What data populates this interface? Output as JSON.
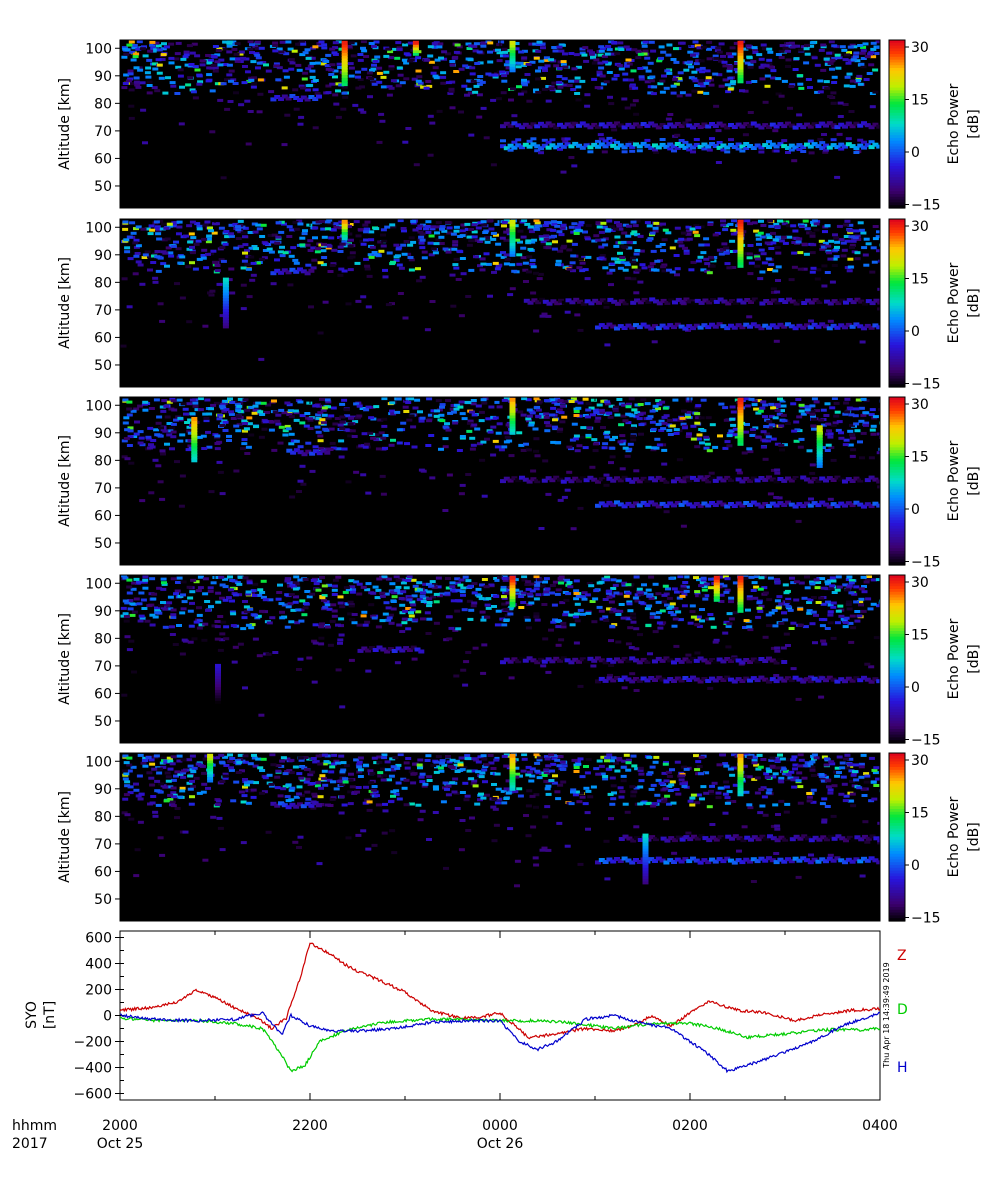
{
  "panel": {
    "ylabel": "Altitude [km]",
    "yticks": [
      50,
      60,
      70,
      80,
      90,
      100
    ],
    "ylim": [
      42,
      103
    ],
    "colorbar": {
      "label_line1": "Echo Power",
      "label_line2": "[dB]",
      "ticks": [
        -15,
        0,
        15,
        30
      ],
      "range": [
        -16,
        32
      ]
    }
  },
  "chart_data": [
    {
      "type": "heatmap",
      "x_range": [
        "2017-10-25 20:00",
        "2017-10-26 04:00"
      ],
      "ylabel": "Altitude [km]",
      "ylim": [
        42,
        103
      ],
      "value_label": "Echo Power [dB]",
      "value_range": [
        -15,
        30
      ],
      "layers": [
        {
          "type": "layer",
          "x_start": "00:00",
          "x_end": "04:00",
          "altitude": 64.5,
          "value": 3
        },
        {
          "type": "layer",
          "x_start": "00:00",
          "x_end": "04:00",
          "altitude": 72,
          "value": -8
        },
        {
          "type": "layer",
          "x_start": "21:35",
          "x_end": "22:05",
          "altitude": 82,
          "value": -5
        }
      ],
      "spikes": [
        {
          "x": "22:20",
          "alt_top": 102,
          "alt_bottom": 87,
          "value": 30
        },
        {
          "x": "23:05",
          "alt_top": 102,
          "alt_bottom": 98,
          "value": 30
        },
        {
          "x": "00:06",
          "alt_top": 102,
          "alt_bottom": 92,
          "value": 20
        },
        {
          "x": "02:30",
          "alt_top": 102,
          "alt_bottom": 88,
          "value": 30
        }
      ]
    },
    {
      "type": "heatmap",
      "x_range": [
        "2017-10-25 20:00",
        "2017-10-26 04:00"
      ],
      "ylabel": "Altitude [km]",
      "ylim": [
        42,
        103
      ],
      "value_label": "Echo Power [dB]",
      "value_range": [
        -15,
        30
      ],
      "layers": [
        {
          "type": "layer",
          "x_start": "01:00",
          "x_end": "04:00",
          "altitude": 64,
          "value": -5
        },
        {
          "type": "layer",
          "x_start": "00:15",
          "x_end": "04:00",
          "altitude": 73,
          "value": -10
        },
        {
          "type": "layer",
          "x_start": "21:35",
          "x_end": "22:00",
          "altitude": 84,
          "value": -6
        }
      ],
      "spikes": [
        {
          "x": "22:20",
          "alt_top": 102,
          "alt_bottom": 96,
          "value": 25
        },
        {
          "x": "00:06",
          "alt_top": 102,
          "alt_bottom": 90,
          "value": 20
        },
        {
          "x": "02:30",
          "alt_top": 102,
          "alt_bottom": 86,
          "value": 30
        },
        {
          "x": "21:05",
          "alt_top": 81,
          "alt_bottom": 64,
          "value": 8
        }
      ]
    },
    {
      "type": "heatmap",
      "x_range": [
        "2017-10-25 20:00",
        "2017-10-26 04:00"
      ],
      "ylabel": "Altitude [km]",
      "ylim": [
        42,
        103
      ],
      "value_label": "Echo Power [dB]",
      "value_range": [
        -15,
        30
      ],
      "layers": [
        {
          "type": "layer",
          "x_start": "01:00",
          "x_end": "04:00",
          "altitude": 64,
          "value": -5
        },
        {
          "type": "layer",
          "x_start": "00:00",
          "x_end": "04:00",
          "altitude": 73,
          "value": -10
        },
        {
          "type": "layer",
          "x_start": "21:45",
          "x_end": "22:10",
          "altitude": 83,
          "value": -6
        }
      ],
      "spikes": [
        {
          "x": "20:45",
          "alt_top": 95,
          "alt_bottom": 80,
          "value": 25
        },
        {
          "x": "00:06",
          "alt_top": 102,
          "alt_bottom": 90,
          "value": 25
        },
        {
          "x": "02:30",
          "alt_top": 102,
          "alt_bottom": 86,
          "value": 30
        },
        {
          "x": "03:20",
          "alt_top": 92,
          "alt_bottom": 78,
          "value": 20
        }
      ]
    },
    {
      "type": "heatmap",
      "x_range": [
        "2017-10-25 20:00",
        "2017-10-26 04:00"
      ],
      "ylabel": "Altitude [km]",
      "ylim": [
        42,
        103
      ],
      "value_label": "Echo Power [dB]",
      "value_range": [
        -15,
        30
      ],
      "layers": [
        {
          "type": "layer",
          "x_start": "01:00",
          "x_end": "04:00",
          "altitude": 65,
          "value": -8
        },
        {
          "type": "layer",
          "x_start": "00:00",
          "x_end": "03:00",
          "altitude": 72,
          "value": -10
        },
        {
          "type": "layer",
          "x_start": "22:30",
          "x_end": "23:10",
          "altitude": 76,
          "value": -8
        }
      ],
      "spikes": [
        {
          "x": "00:06",
          "alt_top": 102,
          "alt_bottom": 92,
          "value": 30
        },
        {
          "x": "02:15",
          "alt_top": 102,
          "alt_bottom": 94,
          "value": 30
        },
        {
          "x": "02:30",
          "alt_top": 102,
          "alt_bottom": 90,
          "value": 30
        },
        {
          "x": "21:00",
          "alt_top": 70,
          "alt_bottom": 48,
          "value": -5
        }
      ]
    },
    {
      "type": "heatmap",
      "x_range": [
        "2017-10-25 20:00",
        "2017-10-26 04:00"
      ],
      "ylabel": "Altitude [km]",
      "ylim": [
        42,
        103
      ],
      "value_label": "Echo Power [dB]",
      "value_range": [
        -15,
        30
      ],
      "layers": [
        {
          "type": "layer",
          "x_start": "01:00",
          "x_end": "04:00",
          "altitude": 64,
          "value": -3
        },
        {
          "type": "layer",
          "x_start": "01:15",
          "x_end": "04:00",
          "altitude": 72,
          "value": -10
        },
        {
          "type": "layer",
          "x_start": "21:35",
          "x_end": "22:05",
          "altitude": 84,
          "value": -5
        }
      ],
      "spikes": [
        {
          "x": "00:06",
          "alt_top": 102,
          "alt_bottom": 90,
          "value": 25
        },
        {
          "x": "02:30",
          "alt_top": 102,
          "alt_bottom": 88,
          "value": 25
        },
        {
          "x": "20:55",
          "alt_top": 102,
          "alt_bottom": 93,
          "value": 20
        },
        {
          "x": "01:30",
          "alt_top": 73,
          "alt_bottom": 56,
          "value": 8
        }
      ]
    },
    {
      "type": "line",
      "ylabel_line1": "SYO",
      "ylabel_line2": "[nT]",
      "ylim": [
        -650,
        650
      ],
      "yticks": [
        600,
        400,
        200,
        0,
        -200,
        -400,
        -600
      ],
      "x_unit": "hours after 2017-10-25 20:00 UT",
      "series": [
        {
          "name": "Z",
          "color": "#cc0000",
          "x": [
            0,
            0.3,
            0.6,
            0.8,
            1.0,
            1.2,
            1.4,
            1.6,
            1.75,
            1.9,
            2.0,
            2.2,
            2.35,
            2.5,
            2.7,
            3.0,
            3.3,
            3.6,
            3.8,
            4.0,
            4.3,
            4.6,
            4.9,
            5.2,
            5.4,
            5.6,
            5.8,
            6.0,
            6.2,
            6.5,
            6.8,
            7.1,
            7.4,
            7.7,
            8.0
          ],
          "y": [
            40,
            60,
            100,
            200,
            140,
            60,
            0,
            -100,
            -20,
            300,
            560,
            480,
            400,
            340,
            280,
            180,
            30,
            -20,
            -10,
            20,
            -170,
            -140,
            -100,
            -120,
            -80,
            0,
            -80,
            20,
            110,
            40,
            20,
            -40,
            10,
            40,
            50
          ]
        },
        {
          "name": "D",
          "color": "#00cc00",
          "x": [
            0,
            0.4,
            0.8,
            1.2,
            1.5,
            1.7,
            1.8,
            1.95,
            2.1,
            2.4,
            2.8,
            3.2,
            3.6,
            4.0,
            4.4,
            4.8,
            5.2,
            5.6,
            6.0,
            6.3,
            6.6,
            7.0,
            7.4,
            7.8,
            8.0
          ],
          "y": [
            -20,
            -40,
            -40,
            -60,
            -100,
            -300,
            -430,
            -380,
            -200,
            -110,
            -50,
            -30,
            -30,
            -40,
            -40,
            -60,
            -100,
            -60,
            -60,
            -100,
            -170,
            -140,
            -110,
            -110,
            -100
          ]
        },
        {
          "name": "H",
          "color": "#0000cc",
          "x": [
            0,
            0.4,
            0.8,
            1.2,
            1.5,
            1.7,
            1.8,
            2.0,
            2.2,
            2.5,
            2.9,
            3.3,
            3.7,
            4.0,
            4.2,
            4.4,
            4.6,
            4.9,
            5.2,
            5.5,
            5.8,
            6.0,
            6.2,
            6.4,
            6.7,
            7.0,
            7.3,
            7.6,
            8.0
          ],
          "y": [
            0,
            -30,
            -40,
            -30,
            20,
            -150,
            0,
            -80,
            -120,
            -120,
            -100,
            -50,
            -40,
            -40,
            -200,
            -260,
            -200,
            -30,
            0,
            -60,
            -100,
            -200,
            -300,
            -430,
            -360,
            -280,
            -200,
            -80,
            20
          ]
        }
      ]
    }
  ],
  "xaxis": {
    "row1_label": "hhmm",
    "row2_label": "2017",
    "ticks": [
      {
        "time": "2000",
        "date": "Oct 25",
        "hour": 0
      },
      {
        "time": "2200",
        "date": "",
        "hour": 2
      },
      {
        "time": "0000",
        "date": "Oct 26",
        "hour": 4
      },
      {
        "time": "0200",
        "date": "",
        "hour": 6
      },
      {
        "time": "0400",
        "date": "",
        "hour": 8
      }
    ]
  },
  "timestamp": "Thu Apr 18 14:39:49 2019",
  "colors": {
    "background": "#000000",
    "spine": "#000000"
  }
}
